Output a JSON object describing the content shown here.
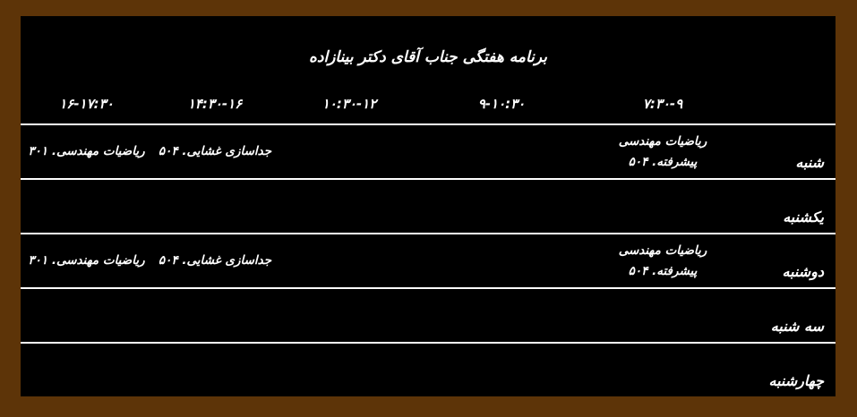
{
  "window": {
    "title": "برنامه هفتگی جناب آقای دکتر بینازاده"
  },
  "table": {
    "time_columns": [
      "۷:۳۰-۹",
      "۹-۱۰:۳۰",
      "۱۰:۳۰-۱۲",
      "۱۴:۳۰-۱۶",
      "۱۶-۱۷:۳۰"
    ],
    "rows": [
      {
        "day": "شنبه",
        "slots": [
          [
            "ریاضیات مهندسی",
            "پیشرفته. ۵۰۴"
          ],
          [],
          [],
          [
            "جداسازی غشایی. ۵۰۴"
          ],
          [
            "ریاضیات مهندسی. ۳۰۱"
          ]
        ]
      },
      {
        "day": "یکشنبه",
        "slots": [
          [],
          [],
          [],
          [],
          []
        ]
      },
      {
        "day": "دوشنبه",
        "slots": [
          [
            "ریاضیات مهندسی",
            "پیشرفته. ۵۰۴"
          ],
          [],
          [],
          [
            "جداسازی غشایی. ۵۰۴"
          ],
          [
            "ریاضیات مهندسی. ۳۰۱"
          ]
        ]
      },
      {
        "day": "سه شنبه",
        "slots": [
          [],
          [],
          [],
          [],
          []
        ]
      },
      {
        "day": "چهارشنبه",
        "slots": [
          [],
          [],
          [],
          [],
          []
        ]
      }
    ]
  },
  "colors": {
    "frame": "#5d3408",
    "panel": "#000000",
    "text": "#ffffff",
    "separator": "#ffffff"
  }
}
